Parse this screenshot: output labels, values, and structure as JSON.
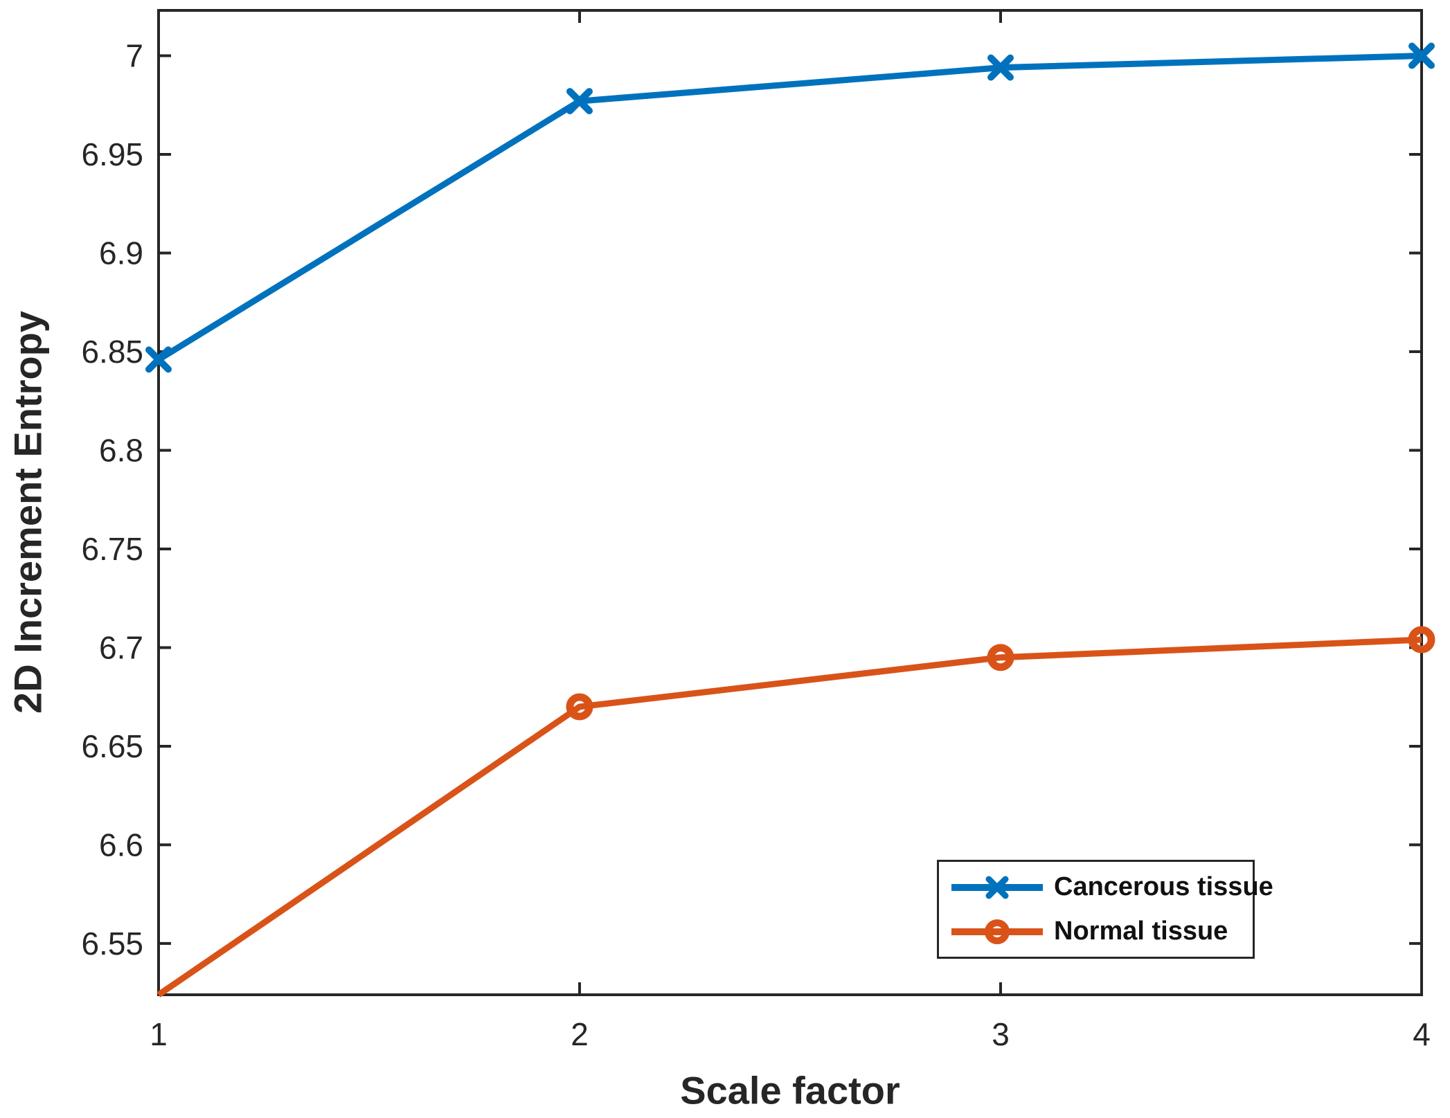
{
  "figure": {
    "background": "#ffffff",
    "axis_color": "#262626",
    "tick_label_color": "#262626",
    "tick_font_size": 46,
    "legend_border_color": "#262626"
  },
  "chart_data": {
    "type": "line",
    "title": "",
    "xlabel": "Scale factor",
    "ylabel": "2D Increment Entropy",
    "x": [
      1,
      2,
      3,
      4
    ],
    "series": [
      {
        "name": "Cancerous tissue",
        "color": "#0072BD",
        "marker": "x",
        "values": [
          6.846,
          6.977,
          6.994,
          7.0
        ]
      },
      {
        "name": "Normal tissue",
        "color": "#D95319",
        "marker": "o",
        "values": [
          6.524,
          6.67,
          6.695,
          6.704
        ]
      }
    ],
    "xlim": [
      1,
      4
    ],
    "ylim": [
      6.524,
      7.023
    ],
    "x_ticks": {
      "values": [
        1,
        2,
        3,
        4
      ],
      "labels": [
        "1",
        "2",
        "3",
        "4"
      ]
    },
    "y_ticks": {
      "values": [
        6.55,
        6.6,
        6.65,
        6.7,
        6.75,
        6.8,
        6.85,
        6.9,
        6.95,
        7
      ],
      "labels": [
        "6.55",
        "6.6",
        "6.65",
        "6.7",
        "6.75",
        "6.8",
        "6.85",
        "6.9",
        "6.95",
        "7"
      ]
    },
    "grid": false,
    "legend": {
      "position": "lower-right",
      "entries": [
        "Cancerous tissue",
        "Normal tissue"
      ]
    }
  }
}
